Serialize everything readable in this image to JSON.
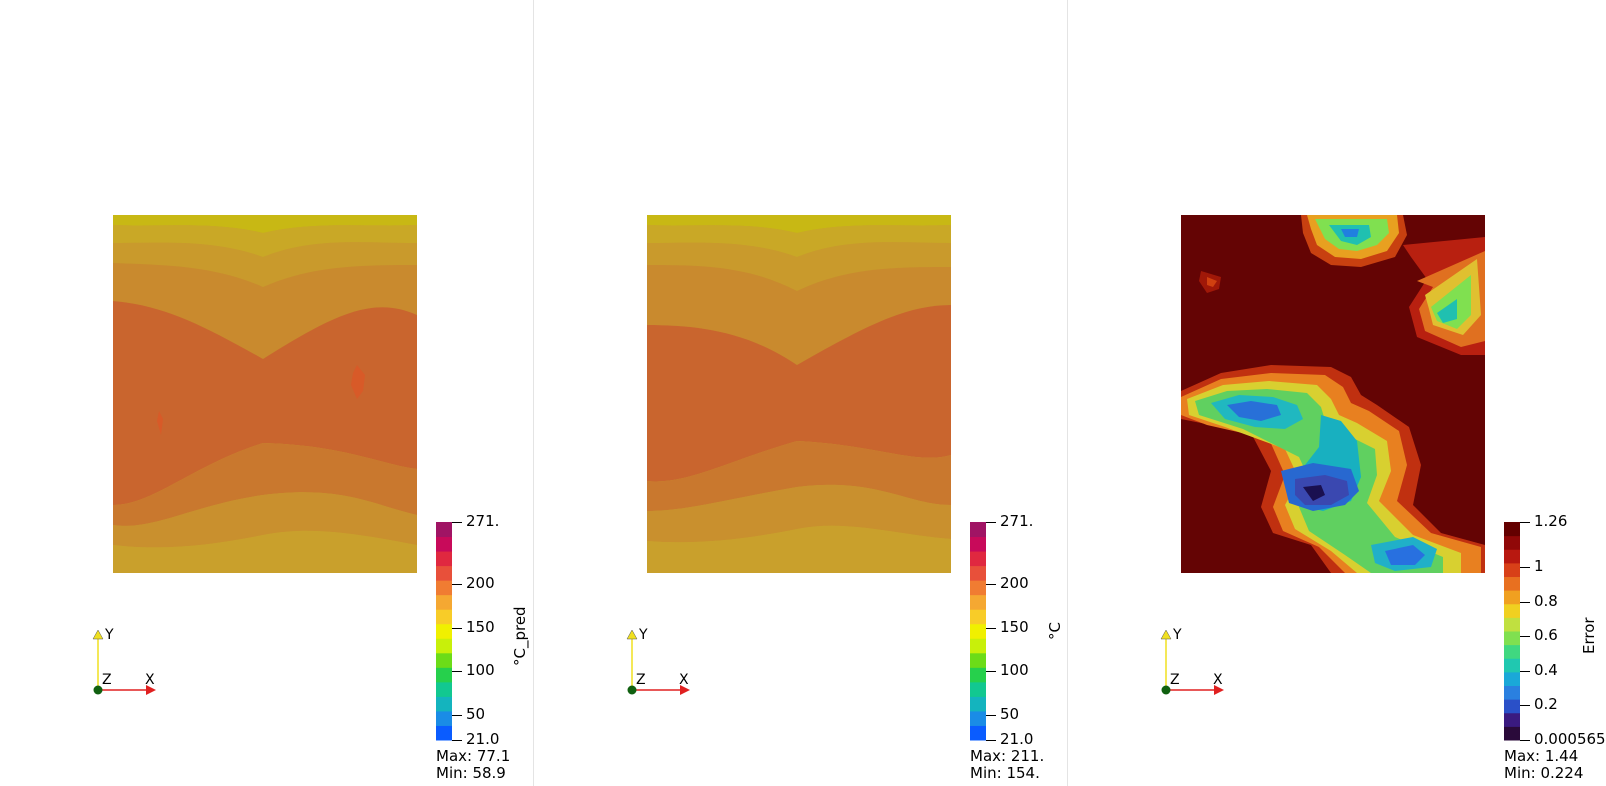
{
  "panels": [
    {
      "name": "°C_pred",
      "colormap": [
        "#0a5cff",
        "#1a8ce6",
        "#14b4be",
        "#12c890",
        "#26d04c",
        "#6cdc18",
        "#c8f00a",
        "#f0f000",
        "#f8cc28",
        "#f5a832",
        "#f07c32",
        "#e8503a",
        "#e02840",
        "#c80a5a",
        "#a01464"
      ],
      "ticks": [
        {
          "label": "271.",
          "value": 271
        },
        {
          "label": "200",
          "value": 200
        },
        {
          "label": "150",
          "value": 150
        },
        {
          "label": "100",
          "value": 100
        },
        {
          "label": "50",
          "value": 50
        },
        {
          "label": "21.0",
          "value": 21
        }
      ],
      "max": "Max: 77.1",
      "min": "Min: 58.9",
      "range": [
        21,
        271
      ],
      "axis_labels": {
        "x": "X",
        "y": "Y",
        "z": "Z"
      }
    },
    {
      "name": "°C",
      "colormap": [
        "#0a5cff",
        "#1a8ce6",
        "#14b4be",
        "#12c890",
        "#26d04c",
        "#6cdc18",
        "#c8f00a",
        "#f0f000",
        "#f8cc28",
        "#f5a832",
        "#f07c32",
        "#e8503a",
        "#e02840",
        "#c80a5a",
        "#a01464"
      ],
      "ticks": [
        {
          "label": "271.",
          "value": 271
        },
        {
          "label": "200",
          "value": 200
        },
        {
          "label": "150",
          "value": 150
        },
        {
          "label": "100",
          "value": 100
        },
        {
          "label": "50",
          "value": 50
        },
        {
          "label": "21.0",
          "value": 21
        }
      ],
      "max": "Max: 211.",
      "min": "Min: 154.",
      "range": [
        21,
        271
      ],
      "axis_labels": {
        "x": "X",
        "y": "Y",
        "z": "Z"
      }
    },
    {
      "name": "Error",
      "colormap": [
        "#2a0a3a",
        "#3a1a80",
        "#2a50c8",
        "#2a80e0",
        "#1aa8d8",
        "#20c8b0",
        "#40d880",
        "#80e050",
        "#c0e040",
        "#f0d020",
        "#f0a020",
        "#e87020",
        "#d84018",
        "#b81810",
        "#900808",
        "#640000"
      ],
      "ticks": [
        {
          "label": "1.26",
          "value": 1.26
        },
        {
          "label": "1",
          "value": 1
        },
        {
          "label": "0.8",
          "value": 0.8
        },
        {
          "label": "0.6",
          "value": 0.6
        },
        {
          "label": "0.4",
          "value": 0.4
        },
        {
          "label": "0.2",
          "value": 0.2
        },
        {
          "label": "0.000565",
          "value": 0.000565
        }
      ],
      "max": "Max: 1.44",
      "min": "Min: 0.224",
      "range": [
        0.000565,
        1.26
      ],
      "axis_labels": {
        "x": "X",
        "y": "Y",
        "z": "Z"
      }
    }
  ]
}
